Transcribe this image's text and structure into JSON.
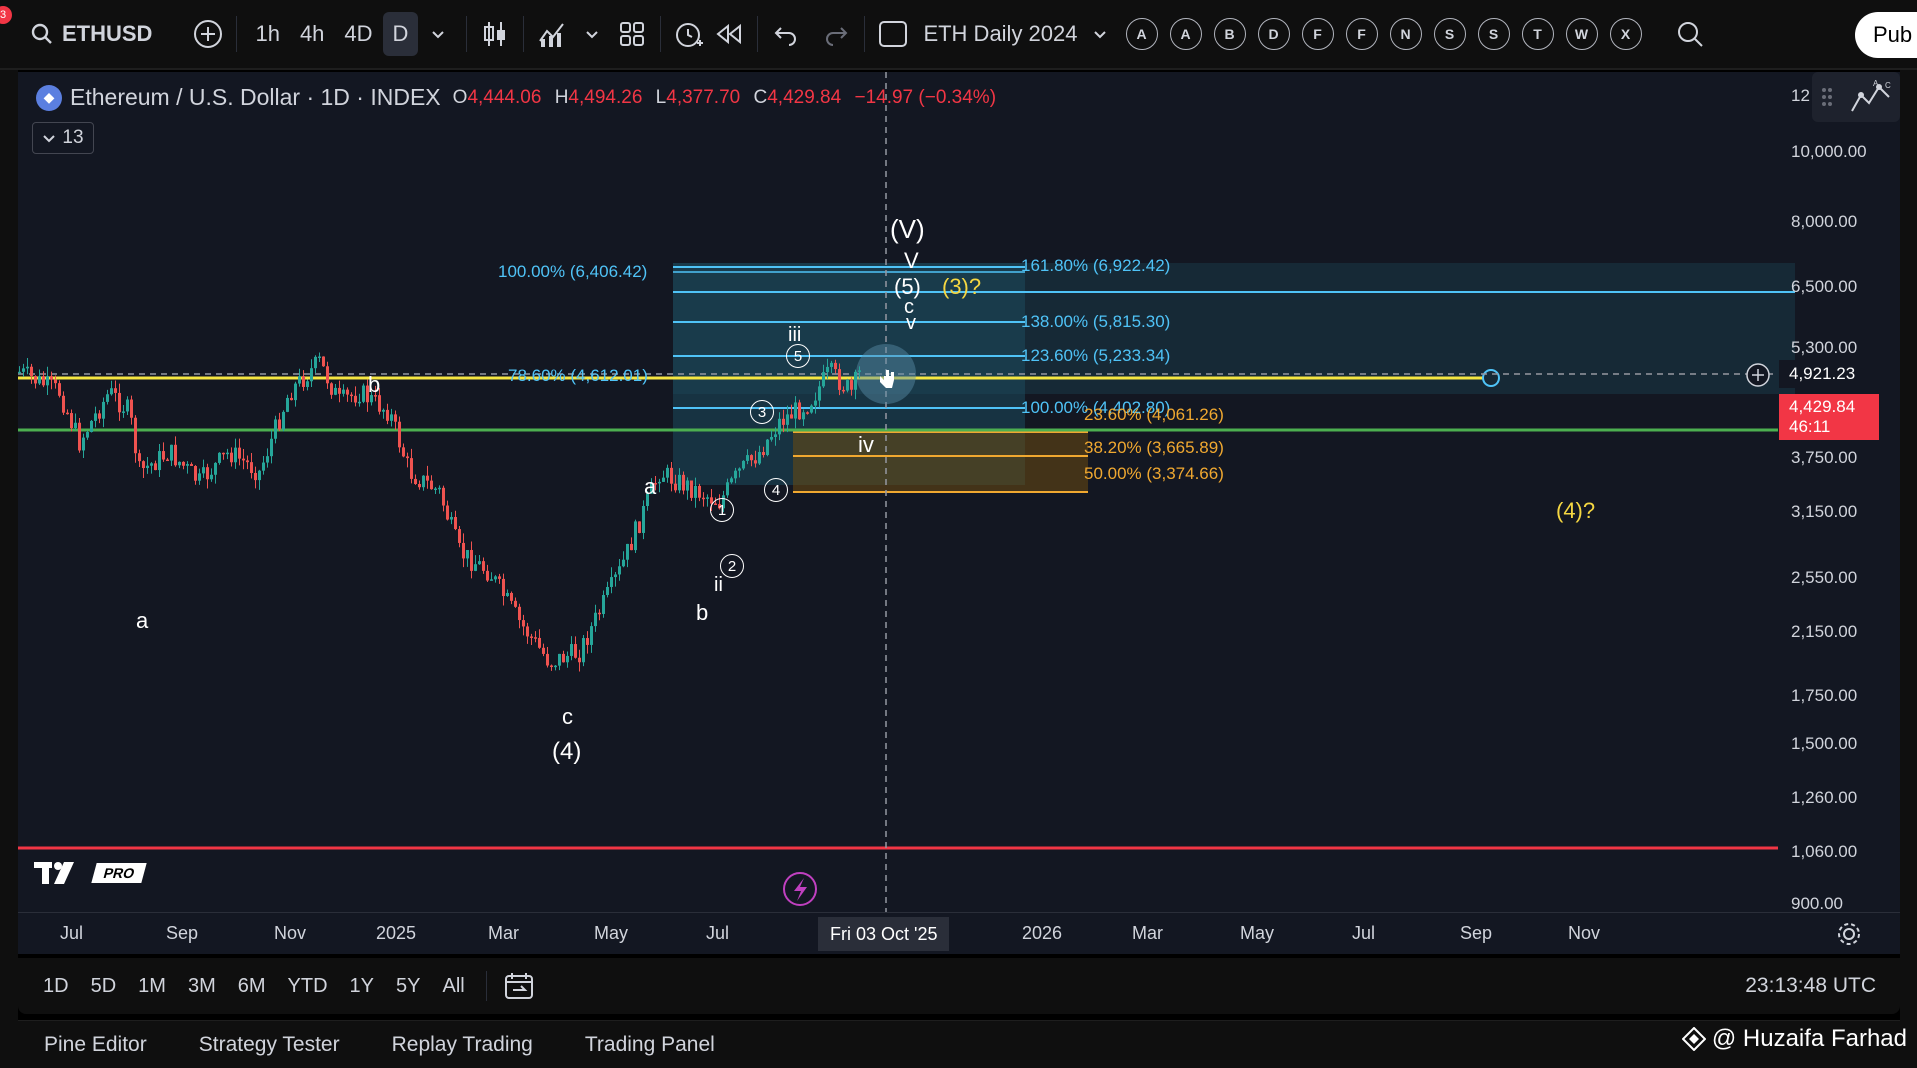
{
  "toolbar": {
    "notification_count": "3",
    "symbol": "ETHUSD",
    "intervals": [
      "1h",
      "4h",
      "4D",
      "D"
    ],
    "active_interval": "D",
    "layout_name": "ETH Daily 2024",
    "alphabet_buttons": [
      "A",
      "A",
      "B",
      "D",
      "F",
      "F",
      "N",
      "S",
      "S",
      "T",
      "W",
      "X"
    ],
    "publish_label": "Pub"
  },
  "legend": {
    "title": "Ethereum / U.S. Dollar · 1D · INDEX",
    "open_key": "O",
    "open": "4,444.06",
    "high_key": "H",
    "high": "4,494.26",
    "low_key": "L",
    "low": "4,377.70",
    "close_key": "C",
    "close": "4,429.84",
    "change": "−14.97 (−0.34%)",
    "indicator_count": "13"
  },
  "price_axis": {
    "labels": [
      "12",
      "10,000.00",
      "8,000.00",
      "6,500.00",
      "5,300.00",
      "3,750.00",
      "3,150.00",
      "2,550.00",
      "2,150.00",
      "1,750.00",
      "1,500.00",
      "1,260.00",
      "1,060.00",
      "900.00"
    ],
    "crosshair_price": "4,921.23",
    "last_price": "4,429.84",
    "countdown": "46:11"
  },
  "time_axis": {
    "labels": [
      "Jul",
      "Sep",
      "Nov",
      "2025",
      "Mar",
      "May",
      "Jul",
      "2026",
      "Mar",
      "May",
      "Jul",
      "Sep",
      "Nov"
    ],
    "crosshair_date": "Fri 03 Oct '25"
  },
  "fib_upper_left": [
    "100.00% (6,406.42)",
    "78.60% (4,612.01)"
  ],
  "fib_upper_right": [
    "161.80% (6,922.42)",
    "138.00% (5,815.30)",
    "123.60% (5,233.34)",
    "100.00% (4,402.80)"
  ],
  "fib_lower": [
    "23.60% (4,061.26)",
    "38.20% (3,665.89)",
    "50.00% (3,374.66)"
  ],
  "wave_labels": {
    "V_big": "(V)",
    "V_small": "V",
    "five_paren": "(5)",
    "three_q": "(3)?",
    "c_top": "c",
    "v_small": "v",
    "iii": "iii",
    "circ5": "5",
    "b_left": "b",
    "circ3": "3",
    "iv": "iv",
    "a_mid": "a",
    "circ4": "4",
    "circ1": "1",
    "circ2": "2",
    "ii": "ii",
    "b_mid": "b",
    "a_left": "a",
    "c_low": "c",
    "four_paren": "(4)",
    "four_q": "(4)?"
  },
  "range_bar": {
    "ranges": [
      "1D",
      "5D",
      "1M",
      "3M",
      "6M",
      "YTD",
      "1Y",
      "5Y",
      "All"
    ],
    "clock": "23:13:48 UTC"
  },
  "bottom_tabs": [
    "Pine Editor",
    "Strategy Tester",
    "Replay Trading",
    "Trading Panel"
  ],
  "watermark": "@ Huzaifa Farhad",
  "logo_badge": "PRO",
  "colors": {
    "background": "#131722",
    "fib_blue": "#4fc3f7",
    "fib_orange": "#f0a830",
    "yellow_line": "#f5e642",
    "green_line": "#4caf50",
    "red_line": "#f23645",
    "accent_yellow": "#f5d742"
  }
}
